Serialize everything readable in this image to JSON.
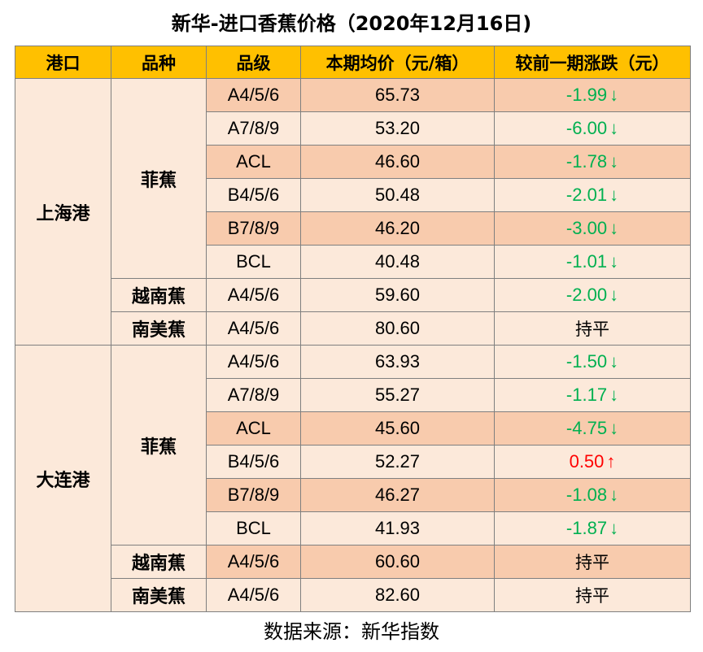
{
  "title": "新华-进口香蕉价格（2020年12月16日)",
  "colors": {
    "header_bg": "#ffc000",
    "row_light": "#fce9da",
    "row_dark": "#f8cbad",
    "down": "#00b050",
    "up": "#ff0000",
    "border": "#7f7f7f"
  },
  "table": {
    "headers": [
      "港口",
      "品种",
      "品级",
      "本期均价（元/箱）",
      "较前一期涨跌（元）"
    ],
    "ports": [
      {
        "name": "上海港",
        "varieties": [
          {
            "name": "菲蕉",
            "rows": [
              {
                "grade": "A4/5/6",
                "price": "65.73",
                "change": "-1.99",
                "arrow": "↓",
                "dir": "down",
                "shade": "dark"
              },
              {
                "grade": "A7/8/9",
                "price": "53.20",
                "change": "-6.00",
                "arrow": "↓",
                "dir": "down",
                "shade": "light"
              },
              {
                "grade": "ACL",
                "price": "46.60",
                "change": "-1.78",
                "arrow": "↓",
                "dir": "down",
                "shade": "dark"
              },
              {
                "grade": "B4/5/6",
                "price": "50.48",
                "change": "-2.01",
                "arrow": "↓",
                "dir": "down",
                "shade": "light"
              },
              {
                "grade": "B7/8/9",
                "price": "46.20",
                "change": "-3.00",
                "arrow": "↓",
                "dir": "down",
                "shade": "dark"
              },
              {
                "grade": "BCL",
                "price": "40.48",
                "change": "-1.01",
                "arrow": "↓",
                "dir": "down",
                "shade": "light"
              }
            ]
          },
          {
            "name": "越南蕉",
            "rows": [
              {
                "grade": "A4/5/6",
                "price": "59.60",
                "change": "-2.00",
                "arrow": "↓",
                "dir": "down",
                "shade": "light"
              }
            ]
          },
          {
            "name": "南美蕉",
            "rows": [
              {
                "grade": "A4/5/6",
                "price": "80.60",
                "change": "持平",
                "arrow": "",
                "dir": "flat",
                "shade": "light"
              }
            ]
          }
        ]
      },
      {
        "name": "大连港",
        "varieties": [
          {
            "name": "菲蕉",
            "rows": [
              {
                "grade": "A4/5/6",
                "price": "63.93",
                "change": "-1.50",
                "arrow": "↓",
                "dir": "down",
                "shade": "light"
              },
              {
                "grade": "A7/8/9",
                "price": "55.27",
                "change": "-1.17",
                "arrow": "↓",
                "dir": "down",
                "shade": "light"
              },
              {
                "grade": "ACL",
                "price": "45.60",
                "change": "-4.75",
                "arrow": "↓",
                "dir": "down",
                "shade": "dark"
              },
              {
                "grade": "B4/5/6",
                "price": "52.27",
                "change": "0.50",
                "arrow": "↑",
                "dir": "up",
                "shade": "light"
              },
              {
                "grade": "B7/8/9",
                "price": "46.27",
                "change": "-1.08",
                "arrow": "↓",
                "dir": "down",
                "shade": "dark"
              },
              {
                "grade": "BCL",
                "price": "41.93",
                "change": "-1.87",
                "arrow": "↓",
                "dir": "down",
                "shade": "light"
              }
            ]
          },
          {
            "name": "越南蕉",
            "rows": [
              {
                "grade": "A4/5/6",
                "price": "60.60",
                "change": "持平",
                "arrow": "",
                "dir": "flat",
                "shade": "dark"
              }
            ]
          },
          {
            "name": "南美蕉",
            "rows": [
              {
                "grade": "A4/5/6",
                "price": "82.60",
                "change": "持平",
                "arrow": "",
                "dir": "flat",
                "shade": "light"
              }
            ]
          }
        ]
      }
    ]
  },
  "source": "数据来源：新华指数"
}
